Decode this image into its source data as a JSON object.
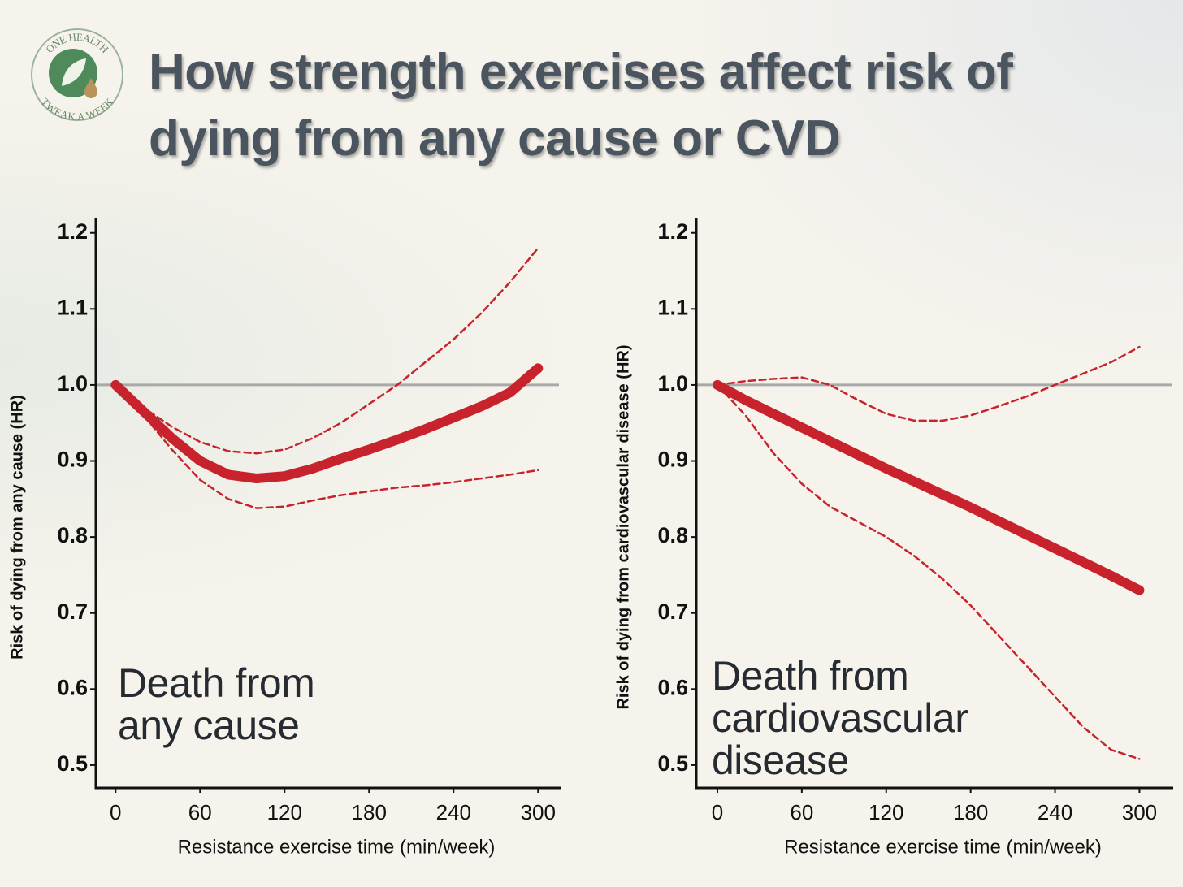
{
  "logo": {
    "top": "ONE HEALTH",
    "bottom": "TWEAK A WEEK"
  },
  "title": "How strength exercises affect risk of dying from any cause or CVD",
  "chart_data": [
    {
      "type": "line",
      "annotation": "Death from any cause",
      "x_label": "Resistance exercise time (min/week)",
      "y_label": "Risk of dying from any cause (HR)",
      "x": [
        0,
        20,
        40,
        60,
        80,
        100,
        120,
        140,
        160,
        180,
        200,
        220,
        240,
        260,
        280,
        300
      ],
      "series": [
        {
          "color": "#c8232c",
          "dashed": false,
          "values": [
            1.0,
            0.965,
            0.93,
            0.9,
            0.882,
            0.877,
            0.88,
            0.89,
            0.903,
            0.915,
            0.928,
            0.942,
            0.957,
            0.972,
            0.99,
            1.022
          ]
        },
        {
          "color": "#c8232c",
          "dashed": true,
          "values": [
            1.0,
            0.97,
            0.945,
            0.925,
            0.913,
            0.91,
            0.915,
            0.93,
            0.95,
            0.975,
            1.0,
            1.03,
            1.06,
            1.095,
            1.135,
            1.18
          ]
        },
        {
          "color": "#c8232c",
          "dashed": true,
          "values": [
            1.0,
            0.96,
            0.915,
            0.875,
            0.85,
            0.838,
            0.84,
            0.848,
            0.855,
            0.86,
            0.865,
            0.868,
            0.872,
            0.877,
            0.882,
            0.888
          ]
        }
      ],
      "reference_line": 1.0,
      "xlim": [
        -14,
        316
      ],
      "ylim": [
        0.47,
        1.22
      ],
      "xticks": [
        0,
        60,
        120,
        180,
        240,
        300
      ],
      "yticks": [
        0.5,
        0.6,
        0.7,
        0.8,
        0.9,
        {
          "value": 1,
          "label": "1.0"
        },
        1.1,
        1.2
      ]
    },
    {
      "type": "line",
      "annotation": "Death from cardiovascular disease",
      "x_label": "Resistance exercise time (min/week)",
      "y_label": "Risk of dying from cardiovascular disease (HR)",
      "x": [
        0,
        20,
        40,
        60,
        80,
        100,
        120,
        140,
        160,
        180,
        200,
        220,
        240,
        260,
        280,
        300
      ],
      "series": [
        {
          "color": "#c8232c",
          "dashed": false,
          "values": [
            1.0,
            0.98,
            0.962,
            0.944,
            0.926,
            0.908,
            0.89,
            0.873,
            0.856,
            0.839,
            0.821,
            0.803,
            0.785,
            0.767,
            0.749,
            0.73
          ]
        },
        {
          "color": "#c8232c",
          "dashed": true,
          "values": [
            1.0,
            1.005,
            1.008,
            1.01,
            1.0,
            0.98,
            0.962,
            0.953,
            0.953,
            0.96,
            0.972,
            0.985,
            1.0,
            1.015,
            1.03,
            1.05
          ]
        },
        {
          "color": "#c8232c",
          "dashed": true,
          "values": [
            1.0,
            0.96,
            0.91,
            0.87,
            0.84,
            0.82,
            0.8,
            0.775,
            0.745,
            0.71,
            0.67,
            0.63,
            0.59,
            0.55,
            0.52,
            0.508
          ]
        }
      ],
      "reference_line": 1.0,
      "xlim": [
        -15,
        324
      ],
      "ylim": [
        0.47,
        1.22
      ],
      "xticks": [
        0,
        60,
        120,
        180,
        240,
        300
      ],
      "yticks": [
        0.5,
        0.6,
        0.7,
        0.8,
        0.9,
        {
          "value": 1,
          "label": "1.0"
        },
        1.1,
        1.2
      ]
    }
  ]
}
